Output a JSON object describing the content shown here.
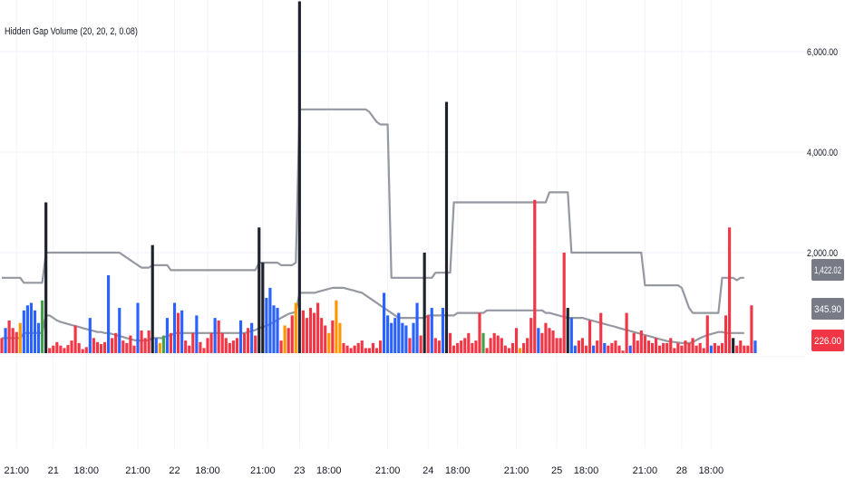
{
  "indicator": {
    "title": "Hidden Gap Volume (20, 20, 2, 0.08)"
  },
  "colors": {
    "red": "#f23645",
    "blue": "#2962ff",
    "black": "#1e222d",
    "orange": "#ff9800",
    "green": "#43a047",
    "band": "#9598a1",
    "grid": "#f0f3fa",
    "badge_gray": "#787b86"
  },
  "chart_data": {
    "type": "bar",
    "title": "Hidden Gap Volume (20, 20, 2, 0.08)",
    "xlabel": "",
    "ylabel": "",
    "ylim": [
      -200,
      7000
    ],
    "y_ticks": [
      {
        "value": 2000,
        "label": "2,000.00"
      },
      {
        "value": 4000,
        "label": "4,000.00"
      },
      {
        "value": 6000,
        "label": "6,000.00"
      }
    ],
    "x_ticks": [
      {
        "label": "21:00",
        "bar": 4
      },
      {
        "label": "21",
        "bar": 14
      },
      {
        "label": "18:00",
        "bar": 23
      },
      {
        "label": "21:00",
        "bar": 37
      },
      {
        "label": "22",
        "bar": 47
      },
      {
        "label": "18:00",
        "bar": 56
      },
      {
        "label": "21:00",
        "bar": 71
      },
      {
        "label": "23",
        "bar": 81
      },
      {
        "label": "18:00",
        "bar": 89
      },
      {
        "label": "21:00",
        "bar": 105
      },
      {
        "label": "24",
        "bar": 116
      },
      {
        "label": "18:00",
        "bar": 124
      },
      {
        "label": "21:00",
        "bar": 140
      },
      {
        "label": "25",
        "bar": 151
      },
      {
        "label": "18:00",
        "bar": 159
      },
      {
        "label": "21:00",
        "bar": 175
      },
      {
        "label": "28",
        "bar": 185
      },
      {
        "label": "18:00",
        "bar": 193
      }
    ],
    "series": [
      {
        "name": "volume",
        "values": [
          300,
          500,
          650,
          500,
          420,
          600,
          850,
          950,
          1000,
          850,
          600,
          1050,
          3000,
          100,
          150,
          220,
          150,
          100,
          160,
          250,
          550,
          200,
          80,
          120,
          700,
          300,
          220,
          180,
          220,
          1550,
          300,
          400,
          900,
          250,
          200,
          350,
          150,
          1000,
          450,
          300,
          450,
          2150,
          300,
          200,
          350,
          700,
          400,
          1000,
          800,
          850,
          250,
          150,
          400,
          750,
          220,
          100,
          300,
          400,
          700,
          650,
          400,
          300,
          200,
          250,
          300,
          650,
          400,
          500,
          600,
          350,
          2500,
          1800,
          1100,
          1300,
          950,
          900,
          250,
          550,
          500,
          750,
          1000,
          7000,
          850,
          700,
          900,
          800,
          1000,
          700,
          550,
          400,
          650,
          1050,
          600,
          200,
          150,
          100,
          150,
          200,
          250,
          100,
          100,
          200,
          100,
          250,
          1200,
          750,
          600,
          700,
          800,
          600,
          550,
          300,
          600,
          1000,
          350,
          2000,
          750,
          900,
          300,
          250,
          900,
          5000,
          400,
          150,
          200,
          250,
          300,
          400,
          200,
          250,
          800,
          400,
          100,
          300,
          400,
          350,
          300,
          150,
          100,
          200,
          500,
          100,
          200,
          300,
          700,
          3050,
          500,
          400,
          600,
          500,
          450,
          300,
          300,
          2000,
          900,
          700,
          150,
          250,
          300,
          150,
          650,
          150,
          250,
          800,
          200,
          150,
          200,
          250,
          150,
          50,
          800,
          150,
          400,
          250,
          450,
          350,
          250,
          200,
          300,
          150,
          200,
          200,
          300,
          100,
          200,
          150,
          250,
          200,
          300,
          150,
          200,
          100,
          750,
          150,
          200,
          150,
          200,
          750,
          2500,
          300,
          150,
          250,
          150,
          150,
          950,
          250
        ],
        "colors": [
          "red",
          "blue",
          "red",
          "red",
          "red",
          "orange",
          "blue",
          "blue",
          "blue",
          "blue",
          "blue",
          "green",
          "black",
          "red",
          "red",
          "red",
          "red",
          "red",
          "red",
          "red",
          "red",
          "red",
          "red",
          "red",
          "blue",
          "red",
          "red",
          "red",
          "red",
          "blue",
          "red",
          "red",
          "blue",
          "red",
          "red",
          "red",
          "red",
          "blue",
          "red",
          "red",
          "red",
          "black",
          "blue",
          "orange",
          "green",
          "blue",
          "red",
          "blue",
          "red",
          "blue",
          "red",
          "red",
          "red",
          "blue",
          "red",
          "red",
          "red",
          "red",
          "blue",
          "red",
          "red",
          "red",
          "red",
          "red",
          "red",
          "blue",
          "red",
          "red",
          "blue",
          "red",
          "black",
          "black",
          "blue",
          "blue",
          "blue",
          "blue",
          "red",
          "orange",
          "red",
          "red",
          "orange",
          "black",
          "red",
          "red",
          "red",
          "red",
          "red",
          "red",
          "red",
          "orange",
          "red",
          "orange",
          "orange",
          "red",
          "red",
          "red",
          "red",
          "red",
          "red",
          "red",
          "red",
          "red",
          "red",
          "red",
          "blue",
          "blue",
          "blue",
          "blue",
          "blue",
          "blue",
          "blue",
          "red",
          "blue",
          "blue",
          "red",
          "black",
          "red",
          "blue",
          "red",
          "red",
          "blue",
          "black",
          "red",
          "red",
          "red",
          "red",
          "red",
          "red",
          "red",
          "red",
          "red",
          "green",
          "red",
          "red",
          "red",
          "red",
          "red",
          "red",
          "red",
          "red",
          "red",
          "orange",
          "red",
          "red",
          "red",
          "red",
          "blue",
          "red",
          "red",
          "red",
          "red",
          "red",
          "red",
          "red",
          "black",
          "blue",
          "blue",
          "red",
          "red",
          "red",
          "red",
          "blue",
          "red",
          "red",
          "blue",
          "red",
          "red",
          "red",
          "red",
          "red",
          "red",
          "blue",
          "red",
          "red",
          "red",
          "red",
          "red",
          "red",
          "red",
          "red",
          "red",
          "red",
          "red",
          "red",
          "red",
          "red",
          "red",
          "red",
          "red",
          "red",
          "red",
          "red",
          "red",
          "blue",
          "red",
          "red",
          "red",
          "red",
          "red",
          "black",
          "red",
          "red",
          "red",
          "red",
          "red",
          "blue",
          "red"
        ]
      },
      {
        "name": "upper_band",
        "values": [
          1500,
          1500,
          1500,
          1500,
          1500,
          1500,
          1400,
          1400,
          1400,
          1400,
          1400,
          1400,
          2000,
          2000,
          2000,
          2000,
          2000,
          2000,
          2000,
          2000,
          2000,
          2000,
          2000,
          2000,
          2000,
          2000,
          2000,
          2000,
          2000,
          2000,
          2000,
          2000,
          2000,
          1950,
          1900,
          1850,
          1800,
          1750,
          1700,
          1700,
          1700,
          1750,
          1750,
          1750,
          1750,
          1750,
          1650,
          1650,
          1650,
          1650,
          1650,
          1650,
          1650,
          1650,
          1650,
          1650,
          1650,
          1650,
          1650,
          1650,
          1650,
          1650,
          1650,
          1650,
          1650,
          1650,
          1650,
          1650,
          1650,
          1650,
          1800,
          1800,
          1800,
          1800,
          1800,
          1800,
          1750,
          1750,
          1750,
          1750,
          1800,
          4850,
          4850,
          4850,
          4850,
          4850,
          4850,
          4850,
          4850,
          4850,
          4850,
          4850,
          4850,
          4850,
          4850,
          4850,
          4850,
          4850,
          4850,
          4850,
          4800,
          4700,
          4600,
          4550,
          4550,
          4550,
          1500,
          1500,
          1500,
          1500,
          1500,
          1500,
          1500,
          1500,
          1500,
          1500,
          1500,
          1500,
          1600,
          1600,
          1600,
          1600,
          1600,
          3000,
          3000,
          3000,
          3000,
          3000,
          3000,
          3000,
          3000,
          3000,
          3000,
          3000,
          3000,
          3000,
          3000,
          3000,
          3000,
          3000,
          3000,
          3000,
          3000,
          3000,
          3000,
          3000,
          3000,
          3000,
          3000,
          3200,
          3200,
          3200,
          3200,
          3200,
          3200,
          2000,
          2000,
          2000,
          2000,
          2000,
          2000,
          2000,
          2000,
          2000,
          2000,
          2000,
          2000,
          2000,
          2000,
          2000,
          2000,
          2000,
          2000,
          2000,
          2000,
          1350,
          1350,
          1350,
          1350,
          1350,
          1350,
          1350,
          1350,
          1350,
          1350,
          1300,
          1100,
          900,
          800,
          800,
          800,
          800,
          800,
          800,
          800,
          800,
          1500,
          1500,
          1500,
          1500,
          1450,
          1500,
          1500
        ]
      },
      {
        "name": "lower_band",
        "values": [
          300,
          300,
          300,
          300,
          300,
          300,
          400,
          400,
          400,
          400,
          400,
          400,
          750,
          750,
          700,
          650,
          620,
          600,
          580,
          560,
          540,
          520,
          500,
          480,
          460,
          440,
          420,
          420,
          400,
          400,
          380,
          360,
          340,
          320,
          300,
          280,
          260,
          250,
          250,
          250,
          260,
          300,
          300,
          300,
          300,
          350,
          350,
          400,
          400,
          400,
          400,
          400,
          400,
          400,
          400,
          400,
          400,
          400,
          400,
          400,
          400,
          400,
          400,
          400,
          400,
          400,
          400,
          420,
          440,
          460,
          500,
          520,
          540,
          580,
          620,
          660,
          700,
          740,
          780,
          800,
          820,
          1200,
          1200,
          1200,
          1200,
          1200,
          1220,
          1240,
          1260,
          1280,
          1300,
          1300,
          1300,
          1300,
          1280,
          1260,
          1240,
          1220,
          1200,
          1150,
          1100,
          1050,
          1000,
          950,
          900,
          850,
          800,
          750,
          700,
          700,
          700,
          700,
          700,
          700,
          700,
          700,
          750,
          750,
          750,
          750,
          750,
          750,
          750,
          750,
          800,
          800,
          800,
          800,
          800,
          800,
          800,
          800,
          850,
          850,
          850,
          850,
          850,
          850,
          850,
          850,
          850,
          850,
          850,
          850,
          850,
          850,
          850,
          850,
          800,
          800,
          780,
          760,
          740,
          720,
          700,
          700,
          700,
          700,
          700,
          680,
          660,
          640,
          620,
          600,
          580,
          560,
          540,
          520,
          500,
          480,
          460,
          440,
          420,
          400,
          380,
          360,
          340,
          320,
          300,
          280,
          260,
          240,
          230,
          220,
          210,
          200,
          200,
          200,
          220,
          260,
          300,
          330,
          360,
          380,
          400,
          420,
          420,
          400,
          400,
          400,
          400,
          400,
          400
        ]
      }
    ],
    "last_values": [
      {
        "label": "1,422.02",
        "color": "#787b86"
      },
      {
        "label": "345.90",
        "color": "#787b86"
      },
      {
        "label": "226.00",
        "color": "#f23645"
      }
    ]
  }
}
